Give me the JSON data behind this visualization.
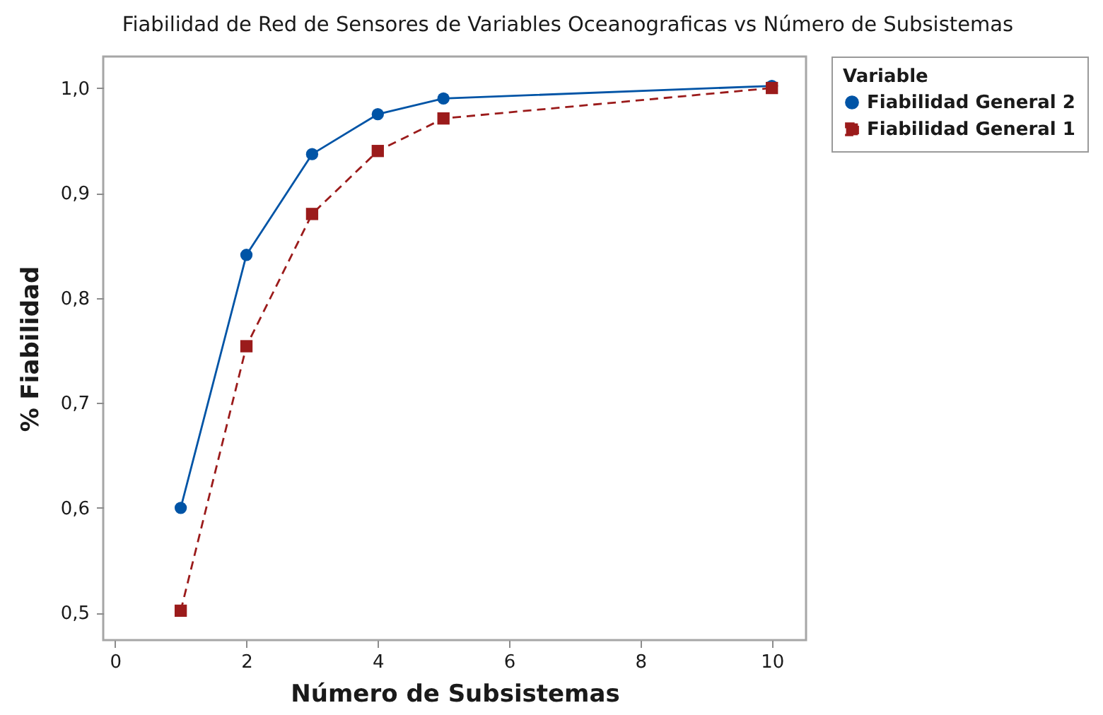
{
  "chart_data": {
    "type": "line",
    "title": "Fiabilidad de Red de Sensores de Variables Oceanograficas vs Número de Subsistemas",
    "xlabel": "Número de Subsistemas",
    "ylabel": "% Fiabilidad",
    "legend_title": "Variable",
    "x": [
      1,
      2,
      3,
      4,
      5,
      10
    ],
    "series": [
      {
        "name": "Fiabilidad General 2",
        "color": "#0054a6",
        "values": [
          0.6,
          0.841,
          0.937,
          0.975,
          0.99,
          1.002
        ],
        "marker": "circle",
        "line_style": "solid"
      },
      {
        "name": "Fiabilidad General 1",
        "color": "#9b1b1b",
        "values": [
          0.502,
          0.754,
          0.88,
          0.94,
          0.971,
          1.0
        ],
        "marker": "square",
        "line_style": "dashed"
      }
    ],
    "xlim": [
      -0.18,
      10.52
    ],
    "ylim": [
      0.474,
      1.03
    ],
    "xticks": [
      0,
      2,
      4,
      6,
      8,
      10
    ],
    "yticks": [
      {
        "value": 0.5,
        "label": "0,5"
      },
      {
        "value": 0.6,
        "label": "0,6"
      },
      {
        "value": 0.7,
        "label": "0,7"
      },
      {
        "value": 0.8,
        "label": "0,8"
      },
      {
        "value": 0.9,
        "label": "0,9"
      },
      {
        "value": 1.0,
        "label": "1,0"
      }
    ],
    "grid": false,
    "legend": "top right"
  }
}
